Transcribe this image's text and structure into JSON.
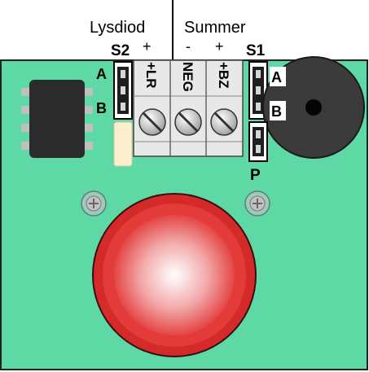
{
  "headers": {
    "left": "Lysdiod",
    "right": "Summer"
  },
  "jumpers": {
    "s2": {
      "name": "S2",
      "pin_a": "A",
      "pin_b": "B"
    },
    "s1": {
      "name": "S1",
      "pin_a": "A",
      "pin_b": "B"
    },
    "p": {
      "name": "P"
    }
  },
  "polarity": {
    "lysdiod_plus": "+",
    "summer_minus": "-",
    "summer_plus": "+"
  },
  "terminals": [
    {
      "label": "+LR"
    },
    {
      "label": "NEG"
    },
    {
      "label": "+BZ"
    }
  ],
  "colors": {
    "board": "#5ed9a6",
    "chip": "#2b2b2b",
    "buzzer": "#3b3b3b",
    "button": "#d42a2a",
    "led": "#fcefcf",
    "terminal_block": "#e8e8e8"
  }
}
